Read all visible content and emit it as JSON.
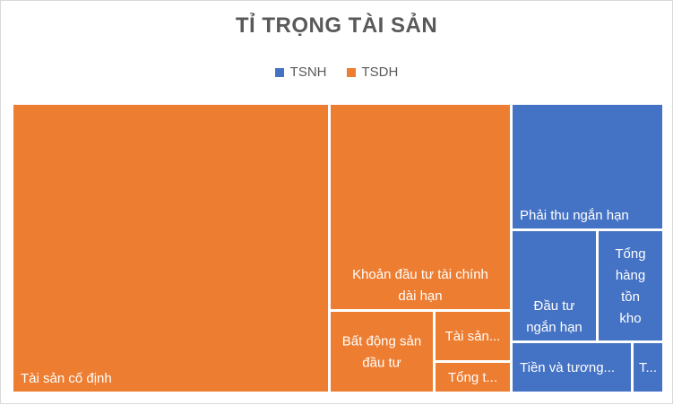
{
  "chart_data": {
    "type": "treemap",
    "title": "TỈ TRỌNG TÀI SẢN",
    "legend": {
      "placement": "top",
      "entries": [
        "TSNH",
        "TSDH"
      ]
    },
    "colors": {
      "TSNH": "#4472C4",
      "TSDH": "#ED7D31"
    },
    "series": [
      {
        "name": "TSDH",
        "items": [
          {
            "name": "Tài sản cố định",
            "label": "Tài sản cố định",
            "value": 44.0
          },
          {
            "name": "Khoản đầu tư tài chính dài hạn",
            "label": "Khoản đầu tư tài chính dài hạn",
            "value": 17.2
          },
          {
            "name": "Bất động sản đầu tư",
            "label": "Bất động sản đầu tư",
            "value": 6.5
          },
          {
            "name": "Tài sản dài hạn khác",
            "label": "Tài sản...",
            "value": 4.2
          },
          {
            "name": "Tổng tài sản dở dang dài hạn",
            "label": "Tổng t...",
            "value": 1.9
          }
        ]
      },
      {
        "name": "TSNH",
        "items": [
          {
            "name": "Phải thu ngắn hạn",
            "label": "Phải thu ngắn hạn",
            "value": 11.0
          },
          {
            "name": "Đầu tư ngắn hạn",
            "label": "Đầu tư ngắn hạn",
            "value": 5.2
          },
          {
            "name": "Tổng hàng tồn kho",
            "label": "Tổng hàng tồn kho",
            "value": 4.1
          },
          {
            "name": "Tiền và tương đương tiền",
            "label": "Tiền và tương...",
            "value": 4.4
          },
          {
            "name": "Tài sản ngắn hạn khác",
            "label": "T...",
            "value": 1.5
          }
        ]
      }
    ]
  }
}
